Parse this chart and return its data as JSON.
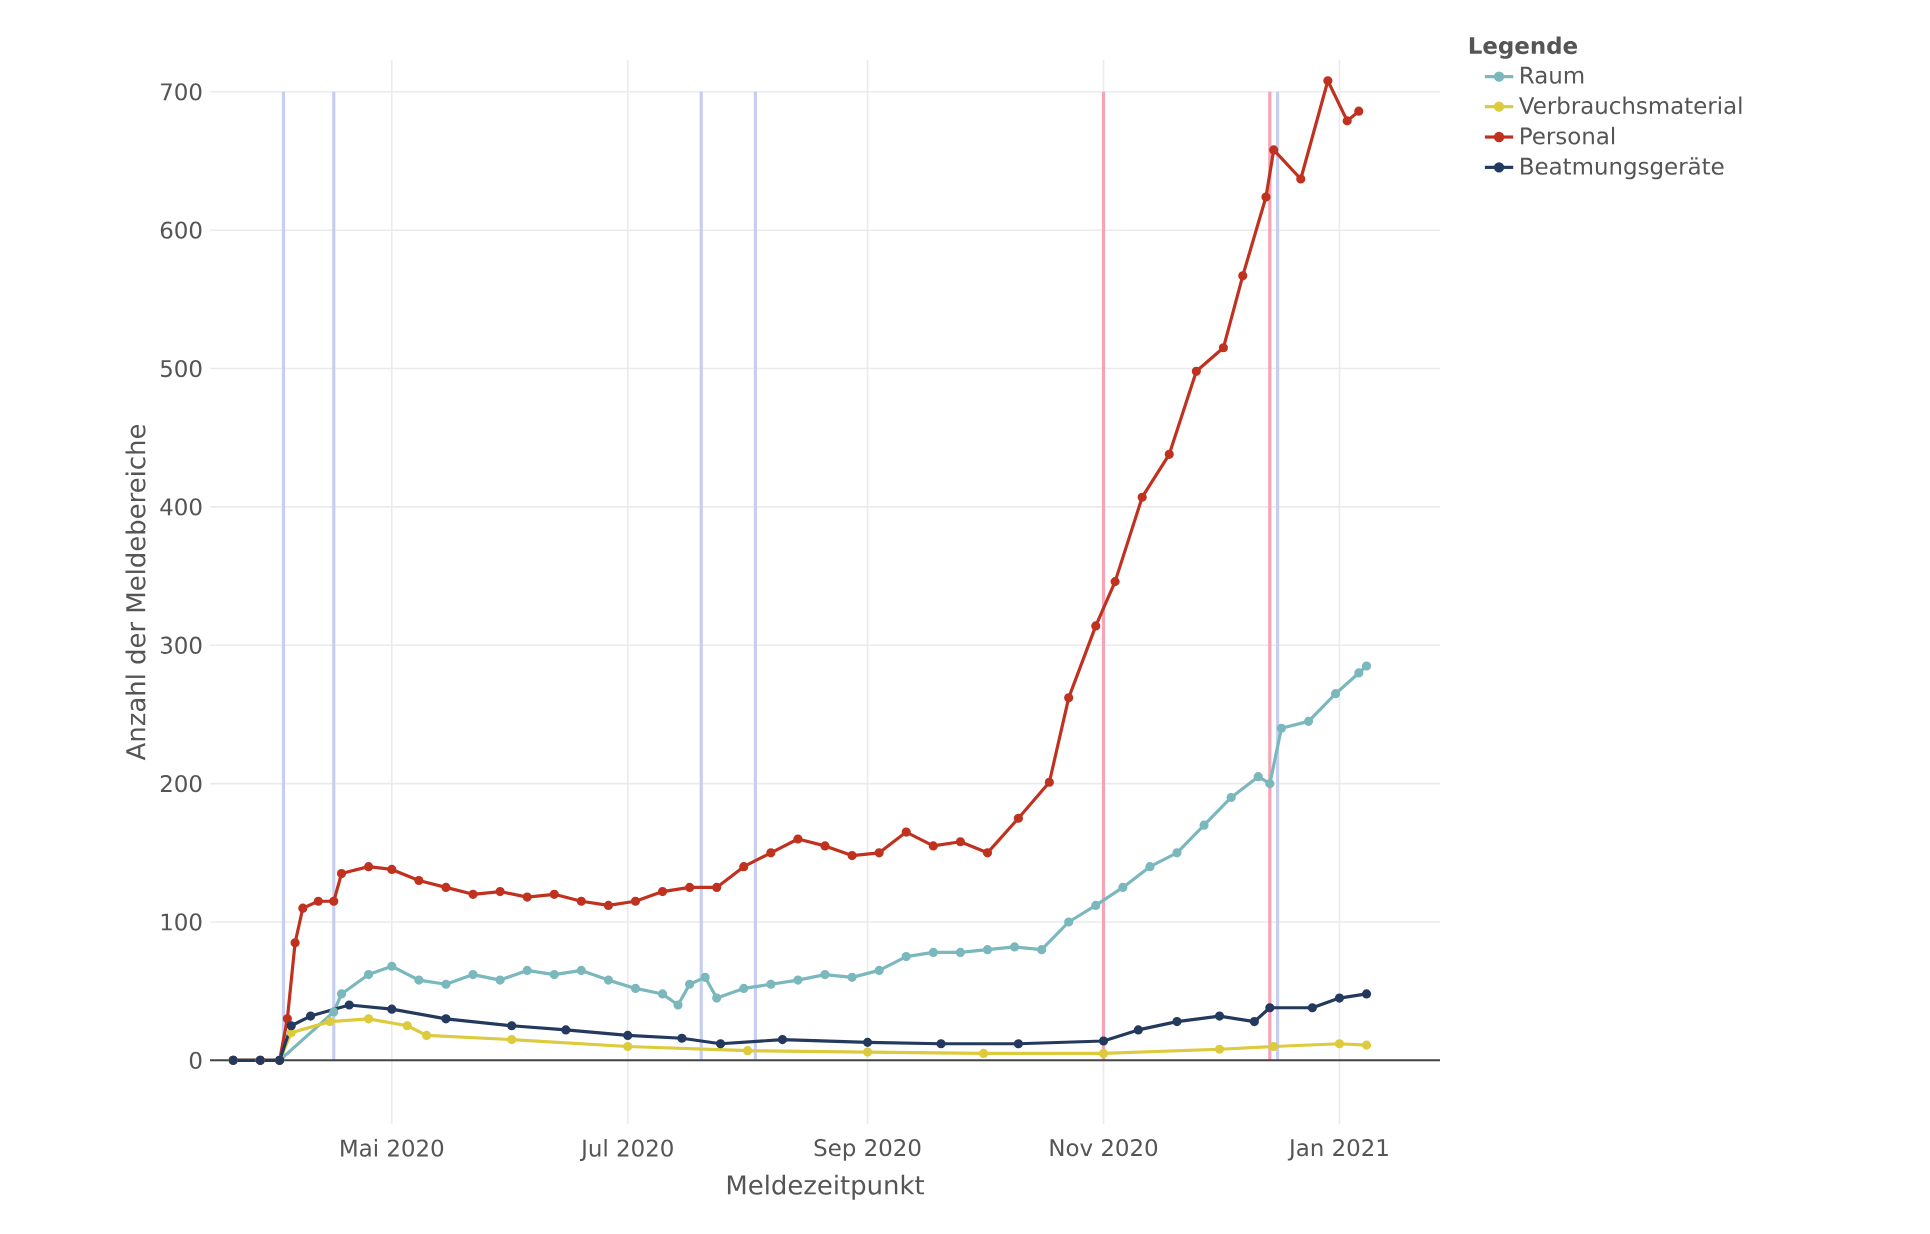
{
  "chart_data": {
    "type": "line",
    "xlabel": "Meldezeitpunkt",
    "ylabel": "Anzahl der Meldebereiche",
    "legend_title": "Legende",
    "legend": "top right",
    "grid": true,
    "marker": "circle",
    "line_style": "solid",
    "xlim": [
      "2020-03-15",
      "2021-01-27"
    ],
    "xticks": [
      {
        "value": "2020-05-01",
        "label": "Mai 2020"
      },
      {
        "value": "2020-07-01",
        "label": "Jul 2020"
      },
      {
        "value": "2020-09-01",
        "label": "Sep 2020"
      },
      {
        "value": "2020-11-01",
        "label": "Nov 2020"
      },
      {
        "value": "2021-01-01",
        "label": "Jan 2021"
      }
    ],
    "ylim": [
      -46,
      723
    ],
    "yticks": [
      0,
      100,
      200,
      300,
      400,
      500,
      600,
      700
    ],
    "ref_lines": [
      {
        "axis": "x",
        "value": "2020-04-03",
        "color": "#c6cef2"
      },
      {
        "axis": "x",
        "value": "2020-04-16",
        "color": "#c6cef2"
      },
      {
        "axis": "x",
        "value": "2020-07-20",
        "color": "#c6cef2"
      },
      {
        "axis": "x",
        "value": "2020-08-03",
        "color": "#c6cef2"
      },
      {
        "axis": "x",
        "value": "2020-11-01",
        "color": "#f5a3b5"
      },
      {
        "axis": "x",
        "value": "2020-12-14",
        "color": "#f5a3b5"
      },
      {
        "axis": "x",
        "value": "2020-12-16",
        "color": "#c6cef2"
      }
    ],
    "series": [
      {
        "name": "Raum",
        "color": "#7ab8bd",
        "x": [
          "2020-03-21",
          "2020-03-28",
          "2020-04-02",
          "2020-04-16",
          "2020-04-18",
          "2020-04-25",
          "2020-05-01",
          "2020-05-08",
          "2020-05-15",
          "2020-05-22",
          "2020-05-29",
          "2020-06-05",
          "2020-06-12",
          "2020-06-19",
          "2020-06-26",
          "2020-07-03",
          "2020-07-10",
          "2020-07-14",
          "2020-07-17",
          "2020-07-21",
          "2020-07-24",
          "2020-07-31",
          "2020-08-07",
          "2020-08-14",
          "2020-08-21",
          "2020-08-28",
          "2020-09-04",
          "2020-09-11",
          "2020-09-18",
          "2020-09-25",
          "2020-10-02",
          "2020-10-09",
          "2020-10-16",
          "2020-10-23",
          "2020-10-30",
          "2020-11-06",
          "2020-11-13",
          "2020-11-20",
          "2020-11-27",
          "2020-12-04",
          "2020-12-11",
          "2020-12-14",
          "2020-12-17",
          "2020-12-24",
          "2020-12-31",
          "2021-01-06",
          "2021-01-08"
        ],
        "values": [
          0,
          0,
          0,
          35,
          48,
          62,
          68,
          58,
          55,
          62,
          58,
          65,
          62,
          65,
          58,
          52,
          48,
          40,
          55,
          60,
          45,
          52,
          55,
          58,
          62,
          60,
          65,
          75,
          78,
          78,
          80,
          82,
          80,
          100,
          112,
          125,
          140,
          150,
          170,
          190,
          205,
          200,
          240,
          245,
          265,
          280,
          285
        ]
      },
      {
        "name": "Verbrauchsmaterial",
        "color": "#dccb3c",
        "x": [
          "2020-03-21",
          "2020-03-28",
          "2020-04-02",
          "2020-04-05",
          "2020-04-15",
          "2020-04-25",
          "2020-05-05",
          "2020-05-10",
          "2020-06-01",
          "2020-07-01",
          "2020-08-01",
          "2020-09-01",
          "2020-10-01",
          "2020-11-01",
          "2020-12-01",
          "2020-12-15",
          "2021-01-01",
          "2021-01-08"
        ],
        "values": [
          0,
          0,
          0,
          20,
          28,
          30,
          25,
          18,
          15,
          10,
          7,
          6,
          5,
          5,
          8,
          10,
          12,
          11
        ]
      },
      {
        "name": "Personal",
        "color": "#c0321f",
        "x": [
          "2020-03-21",
          "2020-03-28",
          "2020-04-02",
          "2020-04-04",
          "2020-04-06",
          "2020-04-08",
          "2020-04-12",
          "2020-04-16",
          "2020-04-18",
          "2020-04-25",
          "2020-05-01",
          "2020-05-08",
          "2020-05-15",
          "2020-05-22",
          "2020-05-29",
          "2020-06-05",
          "2020-06-12",
          "2020-06-19",
          "2020-06-26",
          "2020-07-03",
          "2020-07-10",
          "2020-07-17",
          "2020-07-24",
          "2020-07-31",
          "2020-08-07",
          "2020-08-14",
          "2020-08-21",
          "2020-08-28",
          "2020-09-04",
          "2020-09-11",
          "2020-09-18",
          "2020-09-25",
          "2020-10-02",
          "2020-10-10",
          "2020-10-18",
          "2020-10-23",
          "2020-10-30",
          "2020-11-04",
          "2020-11-11",
          "2020-11-18",
          "2020-11-25",
          "2020-12-02",
          "2020-12-07",
          "2020-12-13",
          "2020-12-15",
          "2020-12-22",
          "2020-12-29",
          "2021-01-03",
          "2021-01-06"
        ],
        "values": [
          0,
          0,
          0,
          30,
          85,
          110,
          115,
          115,
          135,
          140,
          138,
          130,
          125,
          120,
          122,
          118,
          120,
          115,
          112,
          115,
          122,
          125,
          125,
          140,
          150,
          160,
          155,
          148,
          150,
          165,
          155,
          158,
          150,
          175,
          201,
          262,
          314,
          346,
          407,
          438,
          498,
          515,
          567,
          624,
          658,
          637,
          708,
          679,
          686
        ]
      },
      {
        "name": "Beatmungsgeräte",
        "color": "#233a5e",
        "x": [
          "2020-03-21",
          "2020-03-28",
          "2020-04-02",
          "2020-04-05",
          "2020-04-10",
          "2020-04-20",
          "2020-05-01",
          "2020-05-15",
          "2020-06-01",
          "2020-06-15",
          "2020-07-01",
          "2020-07-15",
          "2020-07-25",
          "2020-08-10",
          "2020-09-01",
          "2020-09-20",
          "2020-10-10",
          "2020-11-01",
          "2020-11-10",
          "2020-11-20",
          "2020-12-01",
          "2020-12-10",
          "2020-12-14",
          "2020-12-25",
          "2021-01-01",
          "2021-01-08"
        ],
        "values": [
          0,
          0,
          0,
          25,
          32,
          40,
          37,
          30,
          25,
          22,
          18,
          16,
          12,
          15,
          13,
          12,
          12,
          14,
          22,
          28,
          32,
          28,
          38,
          38,
          45,
          48
        ]
      }
    ]
  }
}
